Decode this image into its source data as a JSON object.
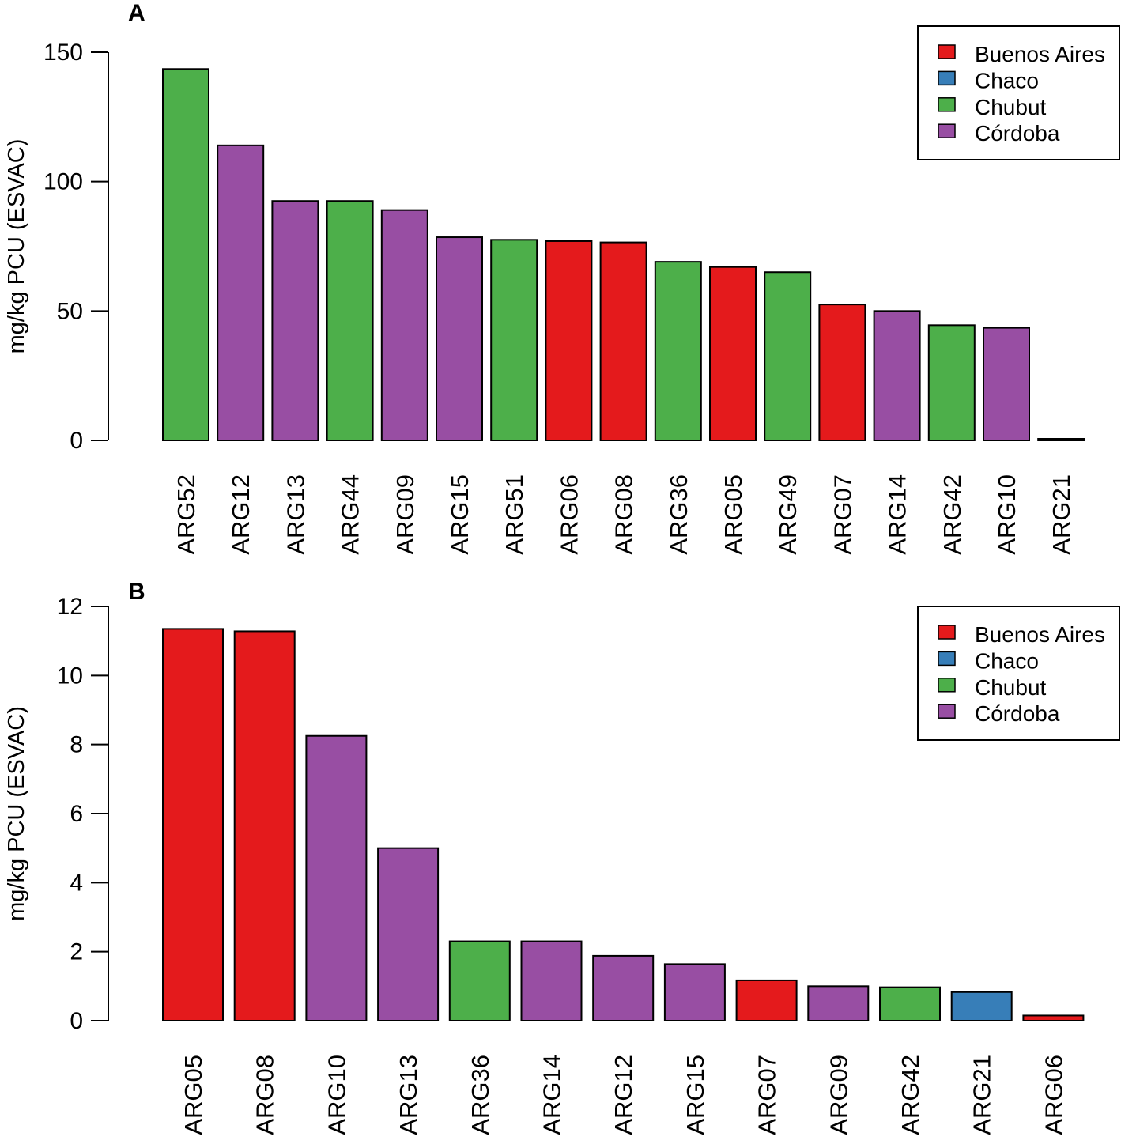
{
  "chart_data": [
    {
      "panel": "A",
      "type": "bar",
      "ylabel": "mg/kg PCU (ESVAC)",
      "ylim": [
        0,
        150
      ],
      "yticks": [
        0,
        50,
        100,
        150
      ],
      "categories": [
        "ARG52",
        "ARG12",
        "ARG13",
        "ARG44",
        "ARG09",
        "ARG15",
        "ARG51",
        "ARG06",
        "ARG08",
        "ARG36",
        "ARG05",
        "ARG49",
        "ARG07",
        "ARG14",
        "ARG42",
        "ARG10",
        "ARG21"
      ],
      "values": [
        143.5,
        114,
        92.5,
        92.5,
        89,
        78.5,
        77.5,
        77,
        76.5,
        69,
        67,
        65,
        52.5,
        50,
        44.5,
        43.5,
        0.5
      ],
      "groups": [
        "Chubut",
        "Córdoba",
        "Córdoba",
        "Chubut",
        "Córdoba",
        "Córdoba",
        "Chubut",
        "Buenos Aires",
        "Buenos Aires",
        "Chubut",
        "Buenos Aires",
        "Chubut",
        "Buenos Aires",
        "Córdoba",
        "Chubut",
        "Córdoba",
        "Chaco"
      ],
      "legend": [
        {
          "label": "Buenos Aires",
          "color": "#e41a1c"
        },
        {
          "label": "Chaco",
          "color": "#377eb8"
        },
        {
          "label": "Chubut",
          "color": "#4daf4a"
        },
        {
          "label": "Córdoba",
          "color": "#984ea3"
        }
      ],
      "legend_position": "top-right"
    },
    {
      "panel": "B",
      "type": "bar",
      "ylabel": "mg/kg PCU (ESVAC)",
      "ylim": [
        0,
        12
      ],
      "yticks": [
        0,
        2,
        4,
        6,
        8,
        10,
        12
      ],
      "categories": [
        "ARG05",
        "ARG08",
        "ARG10",
        "ARG13",
        "ARG36",
        "ARG14",
        "ARG12",
        "ARG15",
        "ARG07",
        "ARG09",
        "ARG42",
        "ARG21",
        "ARG06"
      ],
      "values": [
        11.35,
        11.28,
        8.25,
        5.0,
        2.3,
        2.3,
        1.88,
        1.64,
        1.17,
        1.0,
        0.97,
        0.83,
        0.15
      ],
      "groups": [
        "Buenos Aires",
        "Buenos Aires",
        "Córdoba",
        "Córdoba",
        "Chubut",
        "Córdoba",
        "Córdoba",
        "Córdoba",
        "Buenos Aires",
        "Córdoba",
        "Chubut",
        "Chaco",
        "Buenos Aires"
      ],
      "legend": [
        {
          "label": "Buenos Aires",
          "color": "#e41a1c"
        },
        {
          "label": "Chaco",
          "color": "#377eb8"
        },
        {
          "label": "Chubut",
          "color": "#4daf4a"
        },
        {
          "label": "Córdoba",
          "color": "#984ea3"
        }
      ],
      "legend_position": "top-right"
    }
  ]
}
